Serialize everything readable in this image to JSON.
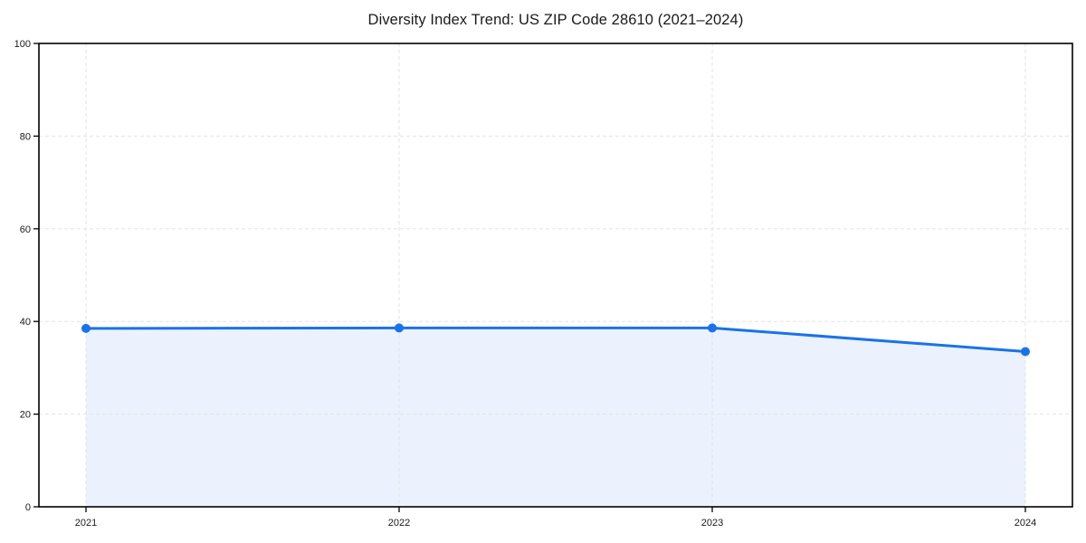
{
  "page": {
    "background": "#ffffff"
  },
  "chart_data": {
    "type": "area",
    "title": "Diversity Index Trend: US ZIP Code 28610 (2021–2024)",
    "x": [
      2021,
      2022,
      2023,
      2024
    ],
    "x_tick_labels": [
      "2021",
      "2022",
      "2023",
      "2024"
    ],
    "series": [
      {
        "name": "Diversity Index",
        "values": [
          38.5,
          38.6,
          38.6,
          33.5
        ]
      }
    ],
    "xlabel": "",
    "ylabel": "",
    "ylim": [
      0,
      100
    ],
    "yticks": [
      0,
      20,
      40,
      60,
      80,
      100
    ],
    "grid": true,
    "grid_style": "dashed",
    "legend": "none",
    "marker": "circle",
    "colors": {
      "line": "#1a73e8",
      "fill": "#e8f0fe",
      "grid": "#e3e3e3",
      "axis": "#000000",
      "text": "#1a1a1a"
    }
  }
}
